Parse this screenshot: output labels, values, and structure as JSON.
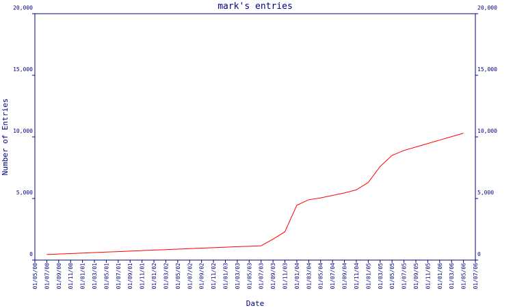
{
  "chart_data": {
    "type": "line",
    "title": "mark's entries",
    "x_label": "Date",
    "y_label": "Number of Entries",
    "categories": [
      "01/05/00",
      "01/07/00",
      "01/09/00",
      "01/11/00",
      "01/01/01",
      "01/03/01",
      "01/05/01",
      "01/07/01",
      "01/09/01",
      "01/11/01",
      "01/01/02",
      "01/03/02",
      "01/05/02",
      "01/07/02",
      "01/09/02",
      "01/11/02",
      "01/01/03",
      "01/03/03",
      "01/05/03",
      "01/07/03",
      "01/09/03",
      "01/11/03",
      "01/01/04",
      "01/03/04",
      "01/05/04",
      "01/07/04",
      "01/09/04",
      "01/11/04",
      "01/01/05",
      "01/03/05",
      "01/05/05",
      "01/07/05",
      "01/09/05",
      "01/11/05",
      "01/01/06",
      "01/03/06",
      "01/05/06",
      "01/07/06"
    ],
    "series": [
      {
        "color": "#ff0000",
        "values": [
          null,
          450,
          490,
          530,
          570,
          610,
          650,
          690,
          730,
          770,
          810,
          850,
          890,
          930,
          970,
          1010,
          1050,
          1090,
          1120,
          1160,
          1700,
          2300,
          4450,
          4900,
          5050,
          5250,
          5450,
          5700,
          6300,
          7600,
          8500,
          8900,
          9180,
          9460,
          9740,
          10020,
          10300,
          null
        ]
      }
    ],
    "ylim": [
      0,
      20000
    ],
    "yticks": [
      0,
      {
        "value": 5000,
        "label": "5,000"
      },
      {
        "value": 10000,
        "label": "10,000"
      },
      {
        "value": 15000,
        "label": "15,000"
      },
      {
        "value": 20000,
        "label": "20,000"
      }
    ],
    "y2lim": [
      0,
      20000
    ],
    "y2ticks": [
      0,
      {
        "value": 5000,
        "label": "5,000"
      },
      {
        "value": 10000,
        "label": "10,000"
      },
      {
        "value": 15000,
        "label": "15,000"
      },
      {
        "value": 20000,
        "label": "20,000"
      }
    ],
    "axis_color": "#000080",
    "grid": false
  }
}
